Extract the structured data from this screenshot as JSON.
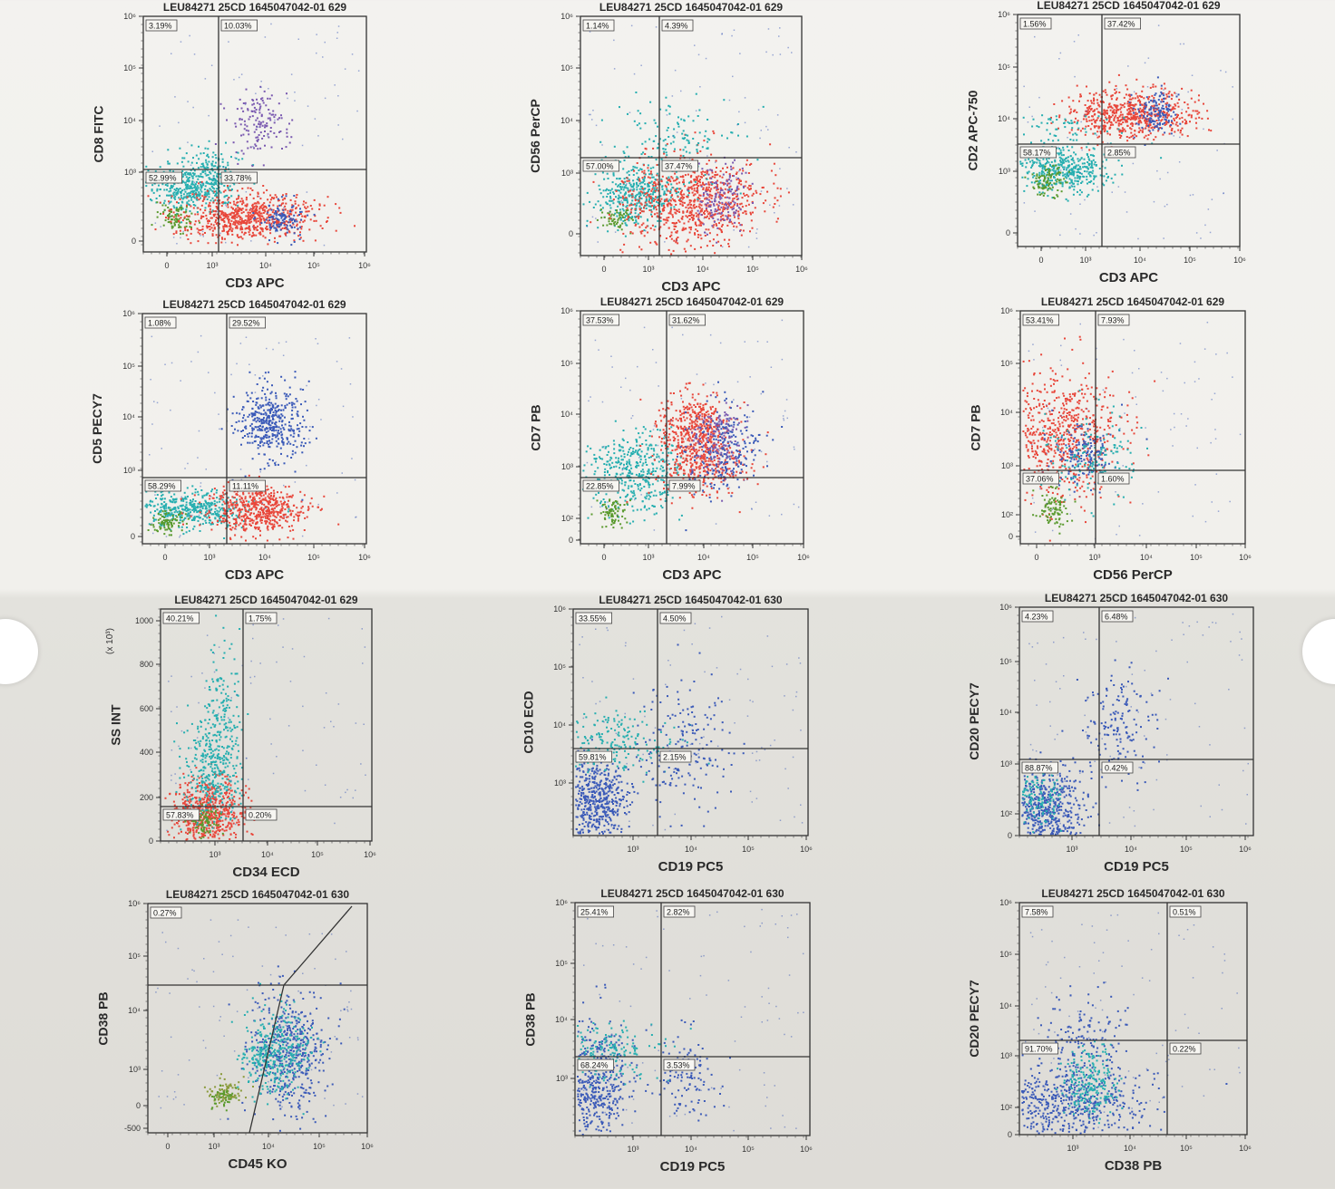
{
  "chart_data": [
    {
      "type": "scatter",
      "title": "LEU84271 25CD 1645047042-01 629",
      "xlabel": "CD3 APC",
      "ylabel": "CD8 FITC",
      "x_ticks": [
        "0",
        "10³",
        "10⁴",
        "10⁵",
        "10⁶"
      ],
      "y_ticks": [
        "0",
        "10³",
        "10⁴",
        "10⁵",
        "10⁶"
      ],
      "quadrants": [
        "3.19%",
        "10.03%",
        "52.99%",
        "33.78%"
      ]
    },
    {
      "type": "scatter",
      "title": "LEU84271 25CD 1645047042-01 629",
      "xlabel": "CD3 APC",
      "ylabel": "CD56 PerCP",
      "x_ticks": [
        "0",
        "10³",
        "10⁴",
        "10⁵",
        "10⁶"
      ],
      "y_ticks": [
        "0",
        "10³",
        "10⁴",
        "10⁵",
        "10⁶"
      ],
      "quadrants": [
        "1.14%",
        "4.39%",
        "57.00%",
        "37.47%"
      ]
    },
    {
      "type": "scatter",
      "title": "LEU84271 25CD 1645047042-01 629",
      "xlabel": "CD3 APC",
      "ylabel": "CD2 APC-750",
      "x_ticks": [
        "0",
        "10³",
        "10⁴",
        "10⁵",
        "10⁶"
      ],
      "y_ticks": [
        "0",
        "10³",
        "10⁴",
        "10⁵",
        "10⁶"
      ],
      "quadrants": [
        "1.56%",
        "37.42%",
        "58.17%",
        "2.85%"
      ]
    },
    {
      "type": "scatter",
      "title": "LEU84271 25CD 1645047042-01 629",
      "xlabel": "CD3 APC",
      "ylabel": "CD5 PECY7",
      "x_ticks": [
        "0",
        "10³",
        "10⁴",
        "10⁵",
        "10⁶"
      ],
      "y_ticks": [
        "0",
        "10³",
        "10⁴",
        "10⁵",
        "10⁶"
      ],
      "quadrants": [
        "1.08%",
        "29.52%",
        "58.29%",
        "11.11%"
      ]
    },
    {
      "type": "scatter",
      "title": "LEU84271 25CD 1645047042-01 629",
      "xlabel": "CD3 APC",
      "ylabel": "CD7 PB",
      "x_ticks": [
        "0",
        "10³",
        "10⁴",
        "10⁵",
        "10⁶"
      ],
      "y_ticks": [
        "0",
        "10²",
        "10³",
        "10⁴",
        "10⁵",
        "10⁶"
      ],
      "quadrants": [
        "37.53%",
        "31.62%",
        "22.85%",
        "7.99%"
      ]
    },
    {
      "type": "scatter",
      "title": "LEU84271 25CD 1645047042-01 629",
      "xlabel": "CD56 PerCP",
      "ylabel": "CD7 PB",
      "x_ticks": [
        "0",
        "10³",
        "10⁴",
        "10⁵",
        "10⁶"
      ],
      "y_ticks": [
        "0",
        "10²",
        "10³",
        "10⁴",
        "10⁵",
        "10⁶"
      ],
      "quadrants": [
        "53.41%",
        "7.93%",
        "37.06%",
        "1.60%"
      ]
    },
    {
      "type": "scatter",
      "title": "LEU84271 25CD 1645047042-01 629",
      "xlabel": "CD34 ECD",
      "ylabel": "SS INT",
      "yunit": "(x 10³)",
      "x_ticks": [
        "10³",
        "10⁴",
        "10⁵",
        "10⁶"
      ],
      "y_ticks": [
        "0",
        "200",
        "400",
        "600",
        "800",
        "1000"
      ],
      "quadrants": [
        "40.21%",
        "1.75%",
        "57.83%",
        "0.20%"
      ]
    },
    {
      "type": "scatter",
      "title": "LEU84271 25CD 1645047042-01 630",
      "xlabel": "CD19 PC5",
      "ylabel": "CD10 ECD",
      "x_ticks": [
        "10³",
        "10⁴",
        "10⁵",
        "10⁶"
      ],
      "y_ticks": [
        "10³",
        "10⁴",
        "10⁵",
        "10⁶"
      ],
      "quadrants": [
        "33.55%",
        "4.50%",
        "59.81%",
        "2.15%"
      ]
    },
    {
      "type": "scatter",
      "title": "LEU84271 25CD 1645047042-01 630",
      "xlabel": "CD19 PC5",
      "ylabel": "CD20 PECY7",
      "x_ticks": [
        "10³",
        "10⁴",
        "10⁵",
        "10⁶"
      ],
      "y_ticks": [
        "0",
        "10²",
        "10³",
        "10⁴",
        "10⁵",
        "10⁶"
      ],
      "quadrants": [
        "4.23%",
        "6.48%",
        "88.87%",
        "0.42%"
      ]
    },
    {
      "type": "scatter",
      "title": "LEU84271 25CD 1645047042-01 630",
      "xlabel": "CD45 KO",
      "ylabel": "CD38 PB",
      "x_ticks": [
        "0",
        "10³",
        "10⁴",
        "10⁵",
        "10⁶"
      ],
      "y_ticks": [
        "-500",
        "0",
        "10³",
        "10⁴",
        "10⁵",
        "10⁶"
      ],
      "quadrants": [
        "0.27%"
      ]
    },
    {
      "type": "scatter",
      "title": "LEU84271 25CD 1645047042-01 630",
      "xlabel": "CD19 PC5",
      "ylabel": "CD38 PB",
      "x_ticks": [
        "10³",
        "10⁴",
        "10⁵",
        "10⁶"
      ],
      "y_ticks": [
        "10³",
        "10⁴",
        "10⁵",
        "10⁶"
      ],
      "quadrants": [
        "25.41%",
        "2.82%",
        "68.24%",
        "3.53%"
      ]
    },
    {
      "type": "scatter",
      "title": "LEU84271 25CD 1645047042-01 630",
      "xlabel": "CD38 PB",
      "ylabel": "CD20 PECY7",
      "x_ticks": [
        "10³",
        "10⁴",
        "10⁵",
        "10⁶"
      ],
      "y_ticks": [
        "0",
        "10²",
        "10³",
        "10⁴",
        "10⁵",
        "10⁶"
      ],
      "quadrants": [
        "7.58%",
        "0.51%",
        "91.70%",
        "0.22%"
      ]
    }
  ],
  "colors": {
    "red": "#e8463a",
    "teal": "#26aeb0",
    "blue": "#3b5ab8",
    "green": "#5a9a2e",
    "purple": "#7a5ab0",
    "olive": "#8a9a3a"
  }
}
